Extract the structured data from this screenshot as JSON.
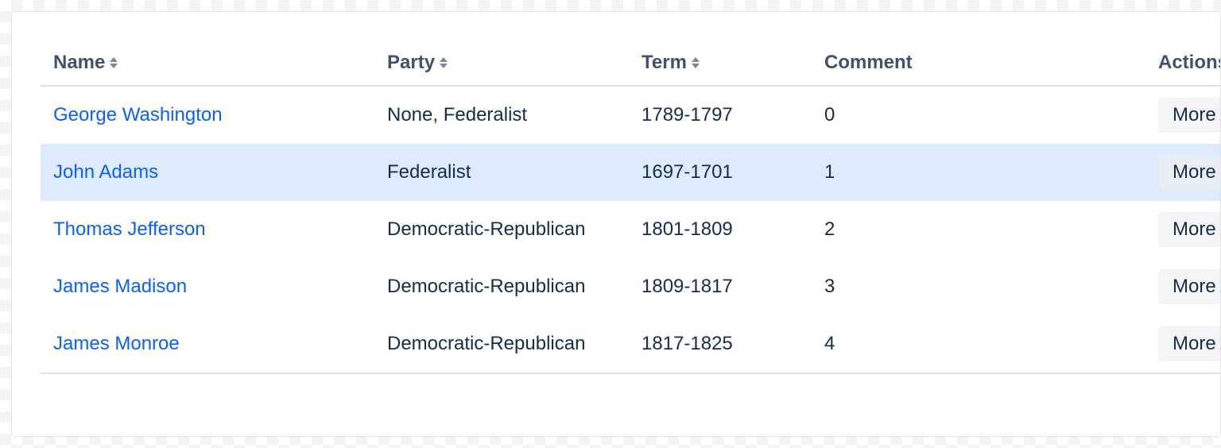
{
  "table": {
    "columns": [
      {
        "key": "name",
        "label": "Name",
        "sortable": true
      },
      {
        "key": "party",
        "label": "Party",
        "sortable": true
      },
      {
        "key": "term",
        "label": "Term",
        "sortable": true
      },
      {
        "key": "comment",
        "label": "Comment",
        "sortable": false
      },
      {
        "key": "actions",
        "label": "Actions",
        "sortable": false
      }
    ],
    "action_label": "More",
    "highlighted_row_index": 1,
    "rows": [
      {
        "name": "George Washington",
        "party": "None, Federalist",
        "term": "1789-1797",
        "comment": "0"
      },
      {
        "name": "John Adams",
        "party": "Federalist",
        "term": "1697-1701",
        "comment": "1"
      },
      {
        "name": "Thomas Jefferson",
        "party": "Democratic-Republican",
        "term": "1801-1809",
        "comment": "2"
      },
      {
        "name": "James Madison",
        "party": "Democratic-Republican",
        "term": "1809-1817",
        "comment": "3"
      },
      {
        "name": "James Monroe",
        "party": "Democratic-Republican",
        "term": "1817-1825",
        "comment": "4"
      }
    ]
  },
  "colors": {
    "header_text": "#42526e",
    "body_text": "#172b4d",
    "link": "#0b5fff",
    "row_hover_bg": "#deebff",
    "border": "#dfe1e6",
    "sort_icon": "#7a869a",
    "action_bg": "#e9ecef"
  }
}
